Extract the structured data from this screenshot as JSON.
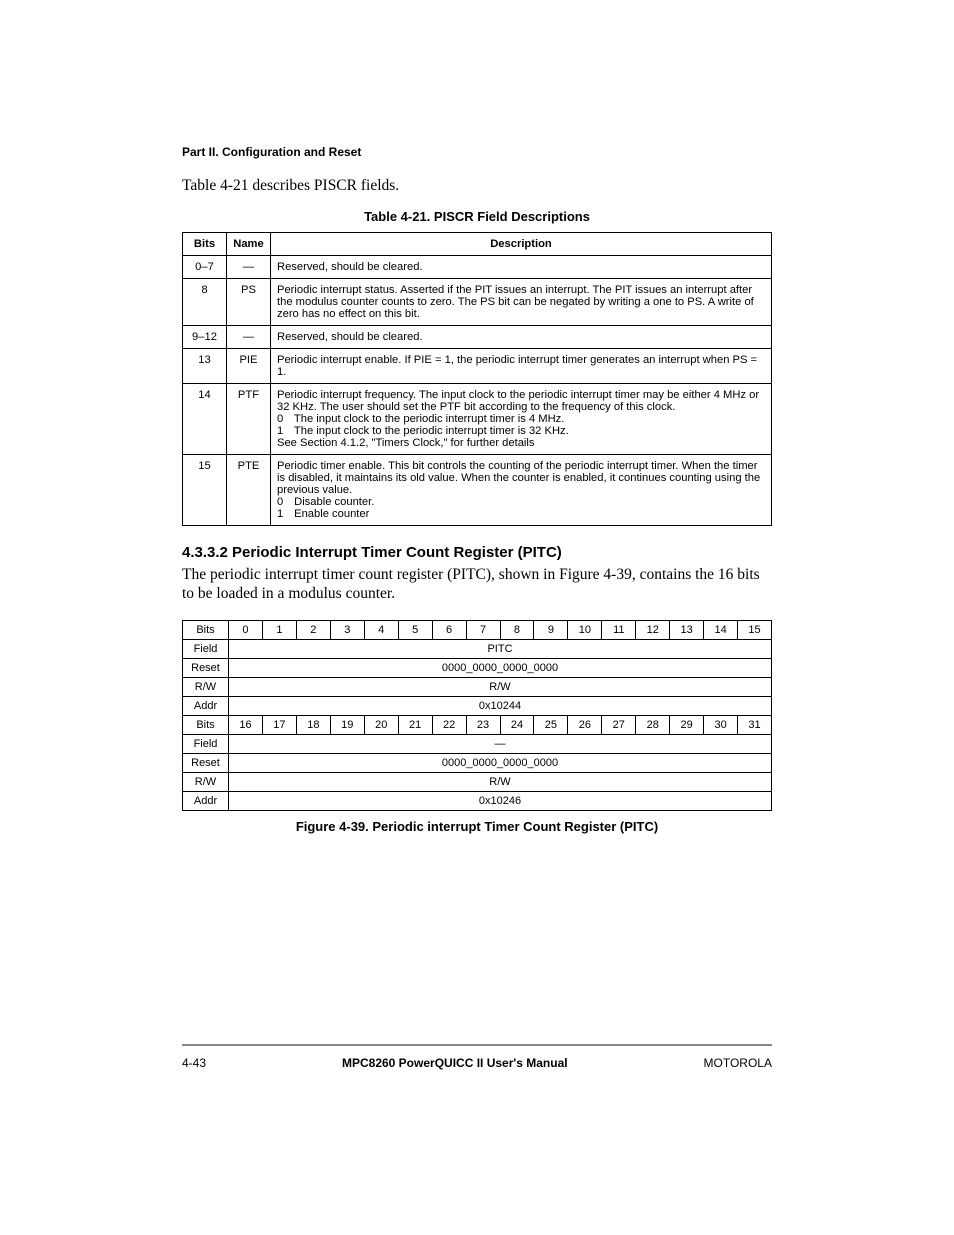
{
  "header": {
    "part_title": "Part II. Configuration and Reset"
  },
  "intro": "Table 4-21 describes PISCR fields.",
  "table421": {
    "caption": "Table 4-21. PISCR Field Descriptions",
    "headers": {
      "bits": "Bits",
      "name": "Name",
      "description": "Description"
    },
    "rows": [
      {
        "bits": "0–7",
        "name": "—",
        "desc_lines": [
          "Reserved, should be cleared."
        ]
      },
      {
        "bits": "8",
        "name": "PS",
        "desc_lines": [
          "Periodic interrupt status. Asserted if the PIT issues an interrupt. The PIT issues an interrupt after the modulus counter counts to zero. The PS bit can be negated by writing a one to PS. A write of zero has no effect on this bit."
        ]
      },
      {
        "bits": "9–12",
        "name": "—",
        "desc_lines": [
          "Reserved, should be cleared."
        ]
      },
      {
        "bits": "13",
        "name": "PIE",
        "desc_lines": [
          "Periodic interrupt enable. If PIE = 1, the periodic interrupt timer generates an interrupt when PS = 1."
        ]
      },
      {
        "bits": "14",
        "name": "PTF",
        "desc_lines": [
          "Periodic interrupt frequency. The input clock to the periodic interrupt timer may be either 4 MHz or 32 KHz. The user should set the PTF bit according to the frequency of this clock."
        ],
        "opts": [
          {
            "n": "0",
            "t": "The input clock to the periodic interrupt timer is 4 MHz."
          },
          {
            "n": "1",
            "t": "The input clock to the periodic interrupt timer is 32 KHz."
          }
        ],
        "trail_lines": [
          "See Section 4.1.2, \"Timers Clock,\" for further details"
        ]
      },
      {
        "bits": "15",
        "name": "PTE",
        "desc_lines": [
          "Periodic timer enable. This bit controls the counting of the periodic interrupt timer. When the timer is disabled, it maintains its old value. When the counter is enabled, it continues counting using the previous value."
        ],
        "opts": [
          {
            "n": "0",
            "t": "Disable counter."
          },
          {
            "n": "1",
            "t": "Enable counter"
          }
        ]
      }
    ]
  },
  "section4332": {
    "heading": "4.3.3.2  Periodic Interrupt Timer Count Register (PITC)",
    "body": "The periodic interrupt timer count register (PITC), shown in Figure 4-39, contains the 16 bits to be loaded in a modulus counter."
  },
  "reg": {
    "labels": {
      "bits": "Bits",
      "field": "Field",
      "reset": "Reset",
      "rw": "R/W",
      "addr": "Addr"
    },
    "upper": {
      "bit_nums": [
        "0",
        "1",
        "2",
        "3",
        "4",
        "5",
        "6",
        "7",
        "8",
        "9",
        "10",
        "11",
        "12",
        "13",
        "14",
        "15"
      ],
      "field": "PITC",
      "reset": "0000_0000_0000_0000",
      "rw": "R/W",
      "addr": "0x10244"
    },
    "lower": {
      "bit_nums": [
        "16",
        "17",
        "18",
        "19",
        "20",
        "21",
        "22",
        "23",
        "24",
        "25",
        "26",
        "27",
        "28",
        "29",
        "30",
        "31"
      ],
      "field": "—",
      "reset": "0000_0000_0000_0000",
      "rw": "R/W",
      "addr": "0x10246"
    },
    "figure_caption": "Figure 4-39. Periodic interrupt Timer Count Register (PITC)"
  },
  "footer": {
    "left": "4-43",
    "center": "MPC8260 PowerQUICC II User's Manual",
    "right": "MOTOROLA"
  }
}
